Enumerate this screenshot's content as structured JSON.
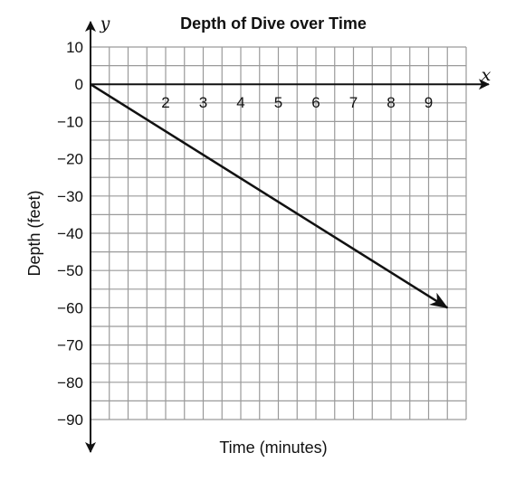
{
  "chart_data": {
    "type": "line",
    "title": "Depth of Dive over Time",
    "xlabel": "Time (minutes)",
    "ylabel": "Depth (feet)",
    "x_axis_letter": "x",
    "y_axis_letter": "y",
    "xlim": [
      0,
      10
    ],
    "ylim": [
      -90,
      10
    ],
    "x_ticks": [
      2,
      3,
      4,
      5,
      6,
      7,
      8,
      9
    ],
    "x_tick_labels": [
      "2",
      "3",
      "4",
      "5",
      "6",
      "7",
      "8",
      "9"
    ],
    "y_ticks": [
      10,
      0,
      -10,
      -20,
      -30,
      -40,
      -50,
      -60,
      -70,
      -80,
      -90
    ],
    "y_tick_labels": [
      "10",
      "0",
      "−10",
      "−20",
      "−30",
      "−40",
      "−50",
      "−60",
      "−70",
      "−80",
      "−90"
    ],
    "grid": true,
    "grid_minor_x_step": 0.5,
    "grid_minor_y_step": 5,
    "line": {
      "x": [
        0,
        9.5
      ],
      "y": [
        0,
        -60
      ],
      "arrow_end": true,
      "color": "#111111"
    },
    "axis_color": "#111111",
    "grid_color": "#9a9a9a"
  }
}
